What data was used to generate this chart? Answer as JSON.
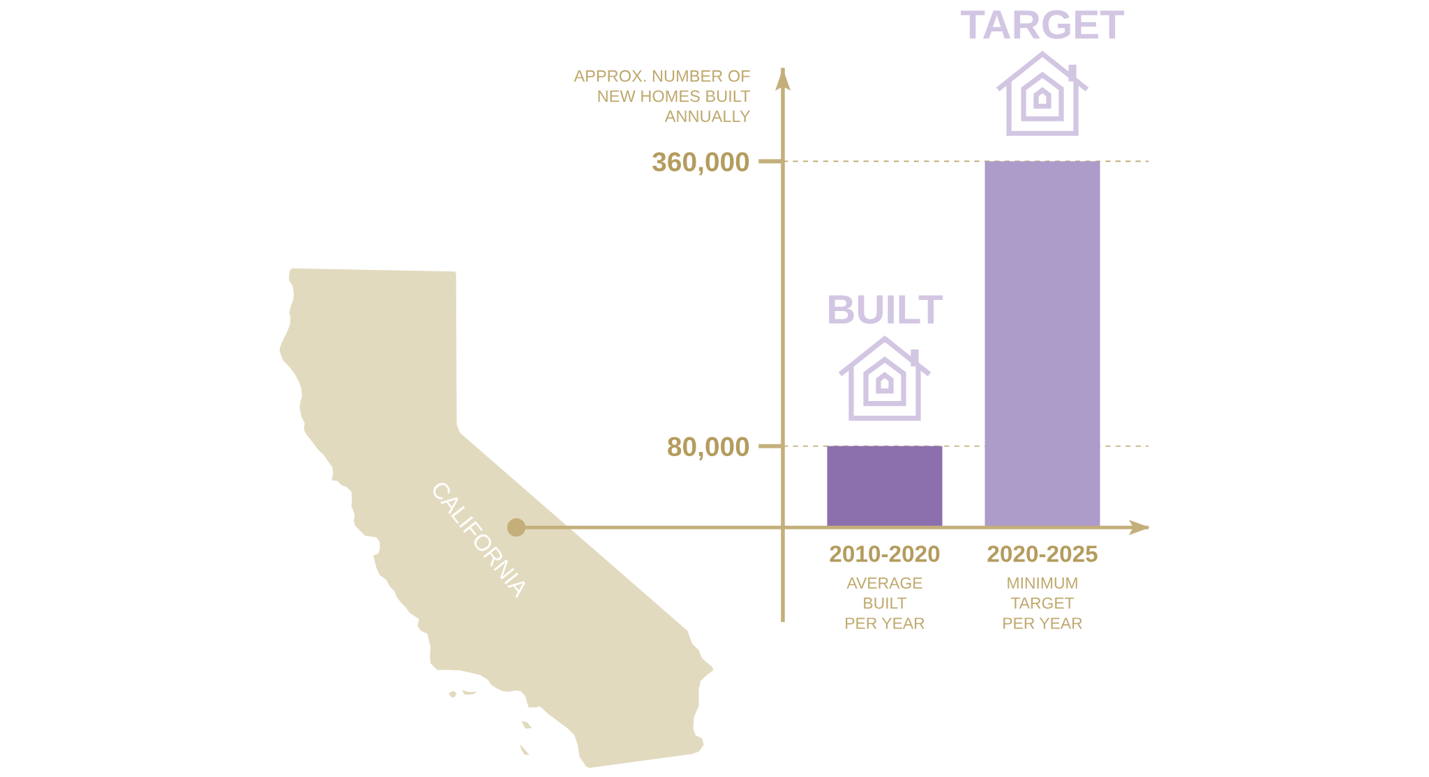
{
  "chart_data": {
    "type": "bar",
    "categories": [
      "2010-2020\nAVERAGE\nBUILT\nPER YEAR",
      "2020-2025\nMINIMUM\nTARGET\nPER YEAR"
    ],
    "values": [
      80000,
      360000
    ],
    "colors": [
      "#8c6fad",
      "#ad9bc9"
    ],
    "ylabel": "APPROX. NUMBER OF\nNEW HOMES BUILT\nANNUALLY",
    "ylim": [
      -91000,
      450000
    ],
    "yticks": [
      {
        "value": 80000,
        "label": "80,000"
      },
      {
        "value": 360000,
        "label": "360,000"
      }
    ],
    "grid": "y",
    "ref_lines": [
      {
        "axis": "y",
        "value": 0,
        "color": "#c4af7b"
      }
    ],
    "annotations": [
      "BUILT",
      "TARGET",
      "CALIFORNIA"
    ]
  }
}
